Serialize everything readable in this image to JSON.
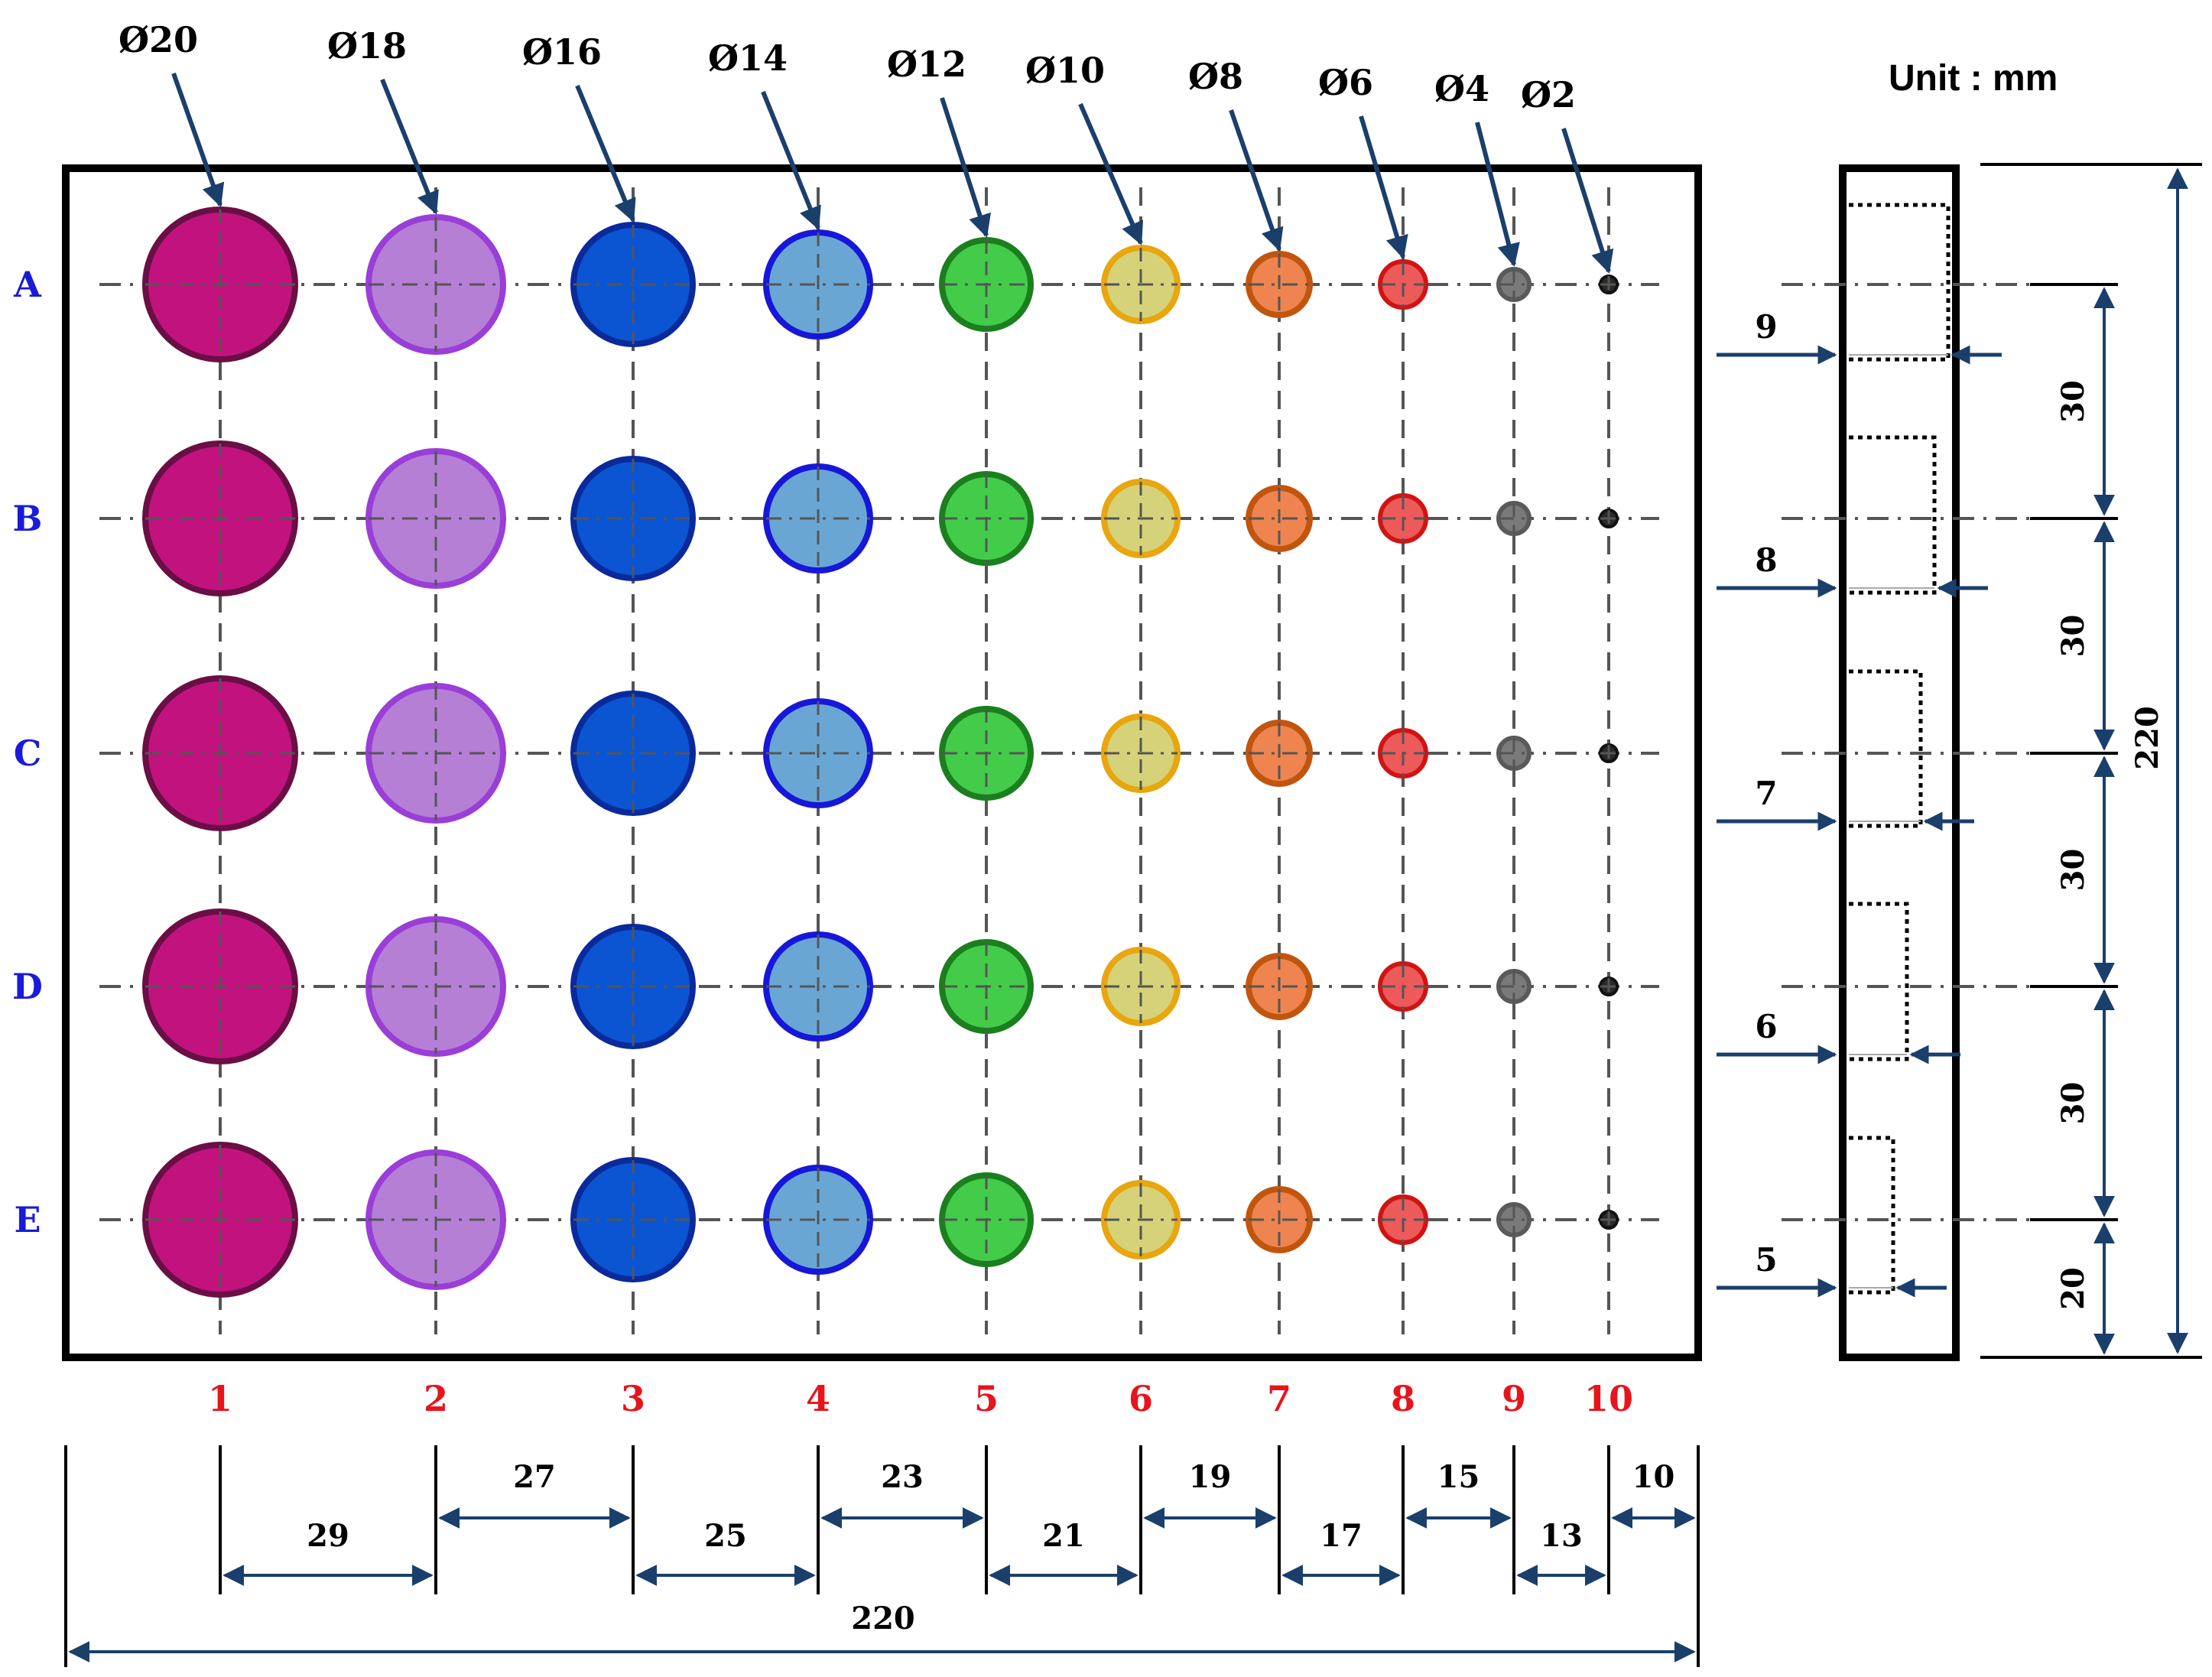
{
  "unit_label": "Unit : mm",
  "colors": {
    "row_label": "#1a1adb",
    "col_label": "#e8141b",
    "arrow": "#1b3f6b",
    "frame": "#000000",
    "centerline": "#555555"
  },
  "diameter_labels": [
    "Ø20",
    "Ø18",
    "Ø16",
    "Ø14",
    "Ø12",
    "Ø10",
    "Ø8",
    "Ø6",
    "Ø4",
    "Ø2"
  ],
  "rows": [
    "A",
    "B",
    "C",
    "D",
    "E"
  ],
  "columns": [
    "1",
    "2",
    "3",
    "4",
    "5",
    "6",
    "7",
    "8",
    "9",
    "10"
  ],
  "hole_styles": [
    {
      "fill": "#c2127e",
      "stroke": "#6a0f45"
    },
    {
      "fill": "#b57fd6",
      "stroke": "#9a3ed8"
    },
    {
      "fill": "#0b55d2",
      "stroke": "#0a2a9c"
    },
    {
      "fill": "#6aa6d4",
      "stroke": "#1717d9"
    },
    {
      "fill": "#43cc4a",
      "stroke": "#1b7f1e"
    },
    {
      "fill": "#d5d27a",
      "stroke": "#e8a60f"
    },
    {
      "fill": "#ee844f",
      "stroke": "#c2550e"
    },
    {
      "fill": "#ec5a5a",
      "stroke": "#d01414"
    },
    {
      "fill": "#7a7a7a",
      "stroke": "#5a5a5a"
    },
    {
      "fill": "#2a2a2a",
      "stroke": "#111111"
    }
  ],
  "bottom_dims": {
    "spacings": [
      "29",
      "27",
      "25",
      "23",
      "21",
      "19",
      "17",
      "15",
      "13",
      "10"
    ],
    "total": "220"
  },
  "side_view": {
    "depth_labels": [
      "9",
      "8",
      "7",
      "6",
      "5"
    ],
    "spacing_labels": [
      "30",
      "30",
      "30",
      "30",
      "20"
    ],
    "total": "220"
  }
}
